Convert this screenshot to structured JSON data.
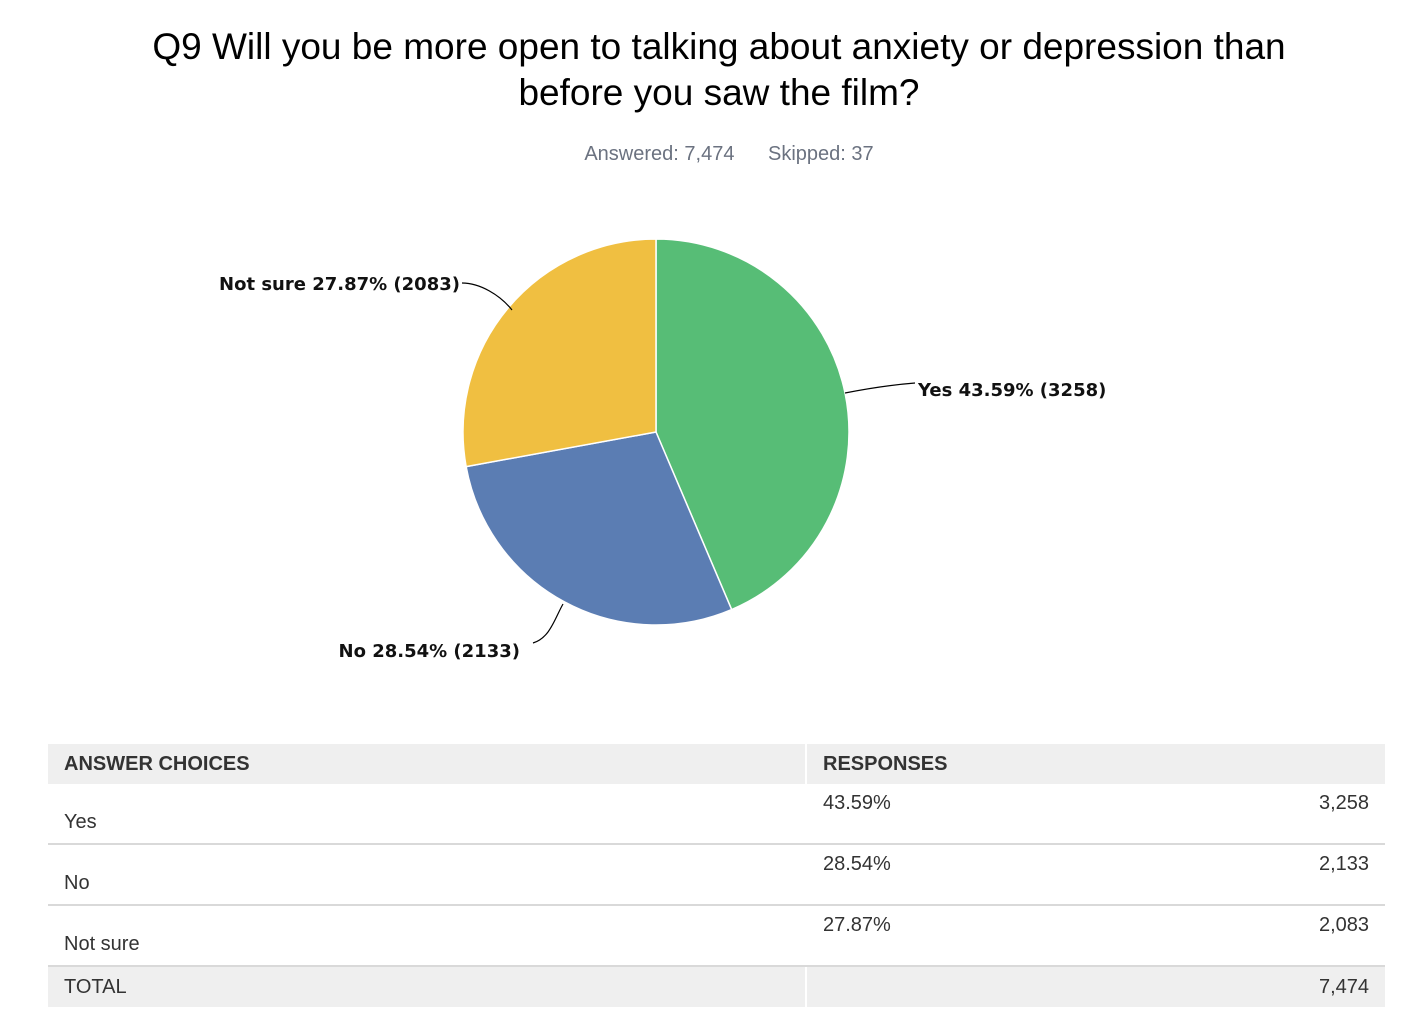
{
  "title": "Q9 Will you be more open to talking about anxiety or depression than before you saw the film?",
  "answered": "Answered: 7,474",
  "skipped": "Skipped: 37",
  "chart_data": {
    "type": "pie",
    "slices": [
      {
        "name": "Yes",
        "percent": 43.59,
        "count": 3258,
        "label": "Yes 43.59% (3258)",
        "color": "#57bd76"
      },
      {
        "name": "No",
        "percent": 28.54,
        "count": 2133,
        "label": "No 28.54% (2133)",
        "color": "#5b7db3"
      },
      {
        "name": "Not sure",
        "percent": 27.87,
        "count": 2083,
        "label": "Not sure 27.87% (2083)",
        "color": "#f0bf41"
      }
    ],
    "start": "12 o'clock",
    "direction": "clockwise"
  },
  "table": {
    "headers": {
      "choices": "ANSWER CHOICES",
      "responses": "RESPONSES"
    },
    "rows": [
      {
        "choice": "Yes",
        "percent": "43.59%",
        "count": "3,258"
      },
      {
        "choice": "No",
        "percent": "28.54%",
        "count": "2,133"
      },
      {
        "choice": "Not sure",
        "percent": "27.87%",
        "count": "2,083"
      }
    ],
    "total": {
      "label": "TOTAL",
      "count": "7,474"
    }
  }
}
